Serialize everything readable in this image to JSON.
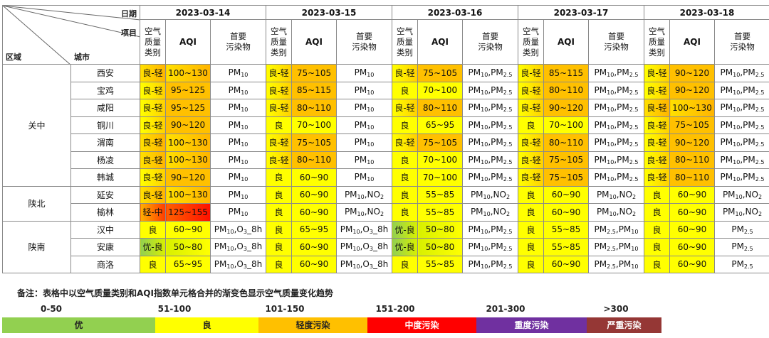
{
  "header": {
    "date_label": "日期",
    "item_label": "项目",
    "region_label": "区域",
    "city_label": "城市",
    "category_label": [
      "空气",
      "质量",
      "类别"
    ],
    "aqi_label": "AQI",
    "pollutant_label": [
      "首要",
      "污染物"
    ]
  },
  "dates": [
    "2023-03-14",
    "2023-03-15",
    "2023-03-16",
    "2023-03-17",
    "2023-03-18"
  ],
  "regions": [
    {
      "name": "关中",
      "cities": [
        "西安",
        "宝鸡",
        "咸阳",
        "铜川",
        "渭南",
        "杨凌",
        "韩城"
      ]
    },
    {
      "name": "陕北",
      "cities": [
        "延安",
        "榆林"
      ]
    },
    {
      "name": "陕南",
      "cities": [
        "汉中",
        "安康",
        "商洛"
      ]
    }
  ],
  "rows": [
    {
      "city": "西安",
      "days": [
        {
          "cat": "良-轻",
          "aqi": "100~130",
          "pol": "PM10",
          "color": "gl2"
        },
        {
          "cat": "良-轻",
          "aqi": "75~105",
          "pol": "PM10",
          "color": "gl"
        },
        {
          "cat": "良-轻",
          "aqi": "75~105",
          "pol": "PM10,PM2.5",
          "color": "gl"
        },
        {
          "cat": "良-轻",
          "aqi": "85~115",
          "pol": "PM10,PM2.5",
          "color": "gl"
        },
        {
          "cat": "良-轻",
          "aqi": "90~120",
          "pol": "PM10,PM2.5",
          "color": "gl"
        }
      ]
    },
    {
      "city": "宝鸡",
      "days": [
        {
          "cat": "良-轻",
          "aqi": "95~125",
          "pol": "PM10",
          "color": "gl"
        },
        {
          "cat": "良-轻",
          "aqi": "85~115",
          "pol": "PM10",
          "color": "gl"
        },
        {
          "cat": "良",
          "aqi": "70~100",
          "pol": "PM10,PM2.5",
          "color": "good"
        },
        {
          "cat": "良-轻",
          "aqi": "80~110",
          "pol": "PM10,PM2.5",
          "color": "gl"
        },
        {
          "cat": "良-轻",
          "aqi": "90~120",
          "pol": "PM10,PM2.5",
          "color": "gl"
        }
      ]
    },
    {
      "city": "咸阳",
      "days": [
        {
          "cat": "良-轻",
          "aqi": "95~125",
          "pol": "PM10",
          "color": "gl"
        },
        {
          "cat": "良-轻",
          "aqi": "80~110",
          "pol": "PM10",
          "color": "gl"
        },
        {
          "cat": "良-轻",
          "aqi": "80~110",
          "pol": "PM10,PM2.5",
          "color": "gl"
        },
        {
          "cat": "良-轻",
          "aqi": "90~120",
          "pol": "PM10,PM2.5",
          "color": "gl"
        },
        {
          "cat": "良-轻",
          "aqi": "100~130",
          "pol": "PM10,PM2.5",
          "color": "gl2"
        }
      ]
    },
    {
      "city": "铜川",
      "days": [
        {
          "cat": "良-轻",
          "aqi": "90~120",
          "pol": "PM10",
          "color": "gl"
        },
        {
          "cat": "良",
          "aqi": "70~100",
          "pol": "PM10",
          "color": "good"
        },
        {
          "cat": "良",
          "aqi": "65~95",
          "pol": "PM10,PM2.5",
          "color": "good"
        },
        {
          "cat": "良",
          "aqi": "70~100",
          "pol": "PM10,PM2.5",
          "color": "good"
        },
        {
          "cat": "良-轻",
          "aqi": "75~105",
          "pol": "PM10,PM2.5",
          "color": "gl"
        }
      ]
    },
    {
      "city": "渭南",
      "days": [
        {
          "cat": "良-轻",
          "aqi": "100~130",
          "pol": "PM10",
          "color": "gl2"
        },
        {
          "cat": "良-轻",
          "aqi": "75~105",
          "pol": "PM10",
          "color": "gl"
        },
        {
          "cat": "良-轻",
          "aqi": "75~105",
          "pol": "PM10,PM2.5",
          "color": "gl"
        },
        {
          "cat": "良-轻",
          "aqi": "80~110",
          "pol": "PM10,PM2.5",
          "color": "gl"
        },
        {
          "cat": "良-轻",
          "aqi": "90~120",
          "pol": "PM10,PM2.5",
          "color": "gl"
        }
      ]
    },
    {
      "city": "杨凌",
      "days": [
        {
          "cat": "良-轻",
          "aqi": "100~130",
          "pol": "PM10",
          "color": "gl2"
        },
        {
          "cat": "良-轻",
          "aqi": "80~110",
          "pol": "PM10",
          "color": "gl"
        },
        {
          "cat": "良",
          "aqi": "70~100",
          "pol": "PM10,PM2.5",
          "color": "good"
        },
        {
          "cat": "良-轻",
          "aqi": "75~105",
          "pol": "PM10,PM2.5",
          "color": "gl"
        },
        {
          "cat": "良-轻",
          "aqi": "80~110",
          "pol": "PM10,PM2.5",
          "color": "gl"
        }
      ]
    },
    {
      "city": "韩城",
      "days": [
        {
          "cat": "良-轻",
          "aqi": "90~120",
          "pol": "PM10",
          "color": "gl"
        },
        {
          "cat": "良",
          "aqi": "60~90",
          "pol": "PM10",
          "color": "good"
        },
        {
          "cat": "良",
          "aqi": "70~100",
          "pol": "PM10,PM2.5",
          "color": "good"
        },
        {
          "cat": "良-轻",
          "aqi": "75~105",
          "pol": "PM10,PM2.5",
          "color": "gl"
        },
        {
          "cat": "良-轻",
          "aqi": "80~110",
          "pol": "PM10,PM2.5",
          "color": "gl"
        }
      ]
    },
    {
      "city": "延安",
      "days": [
        {
          "cat": "良-轻",
          "aqi": "100~130",
          "pol": "PM10",
          "color": "gl2"
        },
        {
          "cat": "良",
          "aqi": "60~90",
          "pol": "PM10,NO2",
          "color": "good"
        },
        {
          "cat": "良",
          "aqi": "55~85",
          "pol": "PM10,NO2",
          "color": "good"
        },
        {
          "cat": "良",
          "aqi": "60~90",
          "pol": "PM10,NO2",
          "color": "good"
        },
        {
          "cat": "良",
          "aqi": "60~90",
          "pol": "PM10,NO2",
          "color": "good"
        }
      ]
    },
    {
      "city": "榆林",
      "days": [
        {
          "cat": "轻-中",
          "aqi": "125~155",
          "pol": "PM10",
          "color": "lm"
        },
        {
          "cat": "良",
          "aqi": "60~90",
          "pol": "PM10,NO2",
          "color": "good"
        },
        {
          "cat": "良",
          "aqi": "55~85",
          "pol": "PM10,NO2",
          "color": "good"
        },
        {
          "cat": "良",
          "aqi": "60~90",
          "pol": "PM10,NO2",
          "color": "good"
        },
        {
          "cat": "良",
          "aqi": "60~90",
          "pol": "PM10,NO2",
          "color": "good"
        }
      ]
    },
    {
      "city": "汉中",
      "days": [
        {
          "cat": "良",
          "aqi": "60~90",
          "pol": "PM10,O3_8h",
          "color": "good"
        },
        {
          "cat": "良",
          "aqi": "65~95",
          "pol": "PM10,O3_8h",
          "color": "good"
        },
        {
          "cat": "优-良",
          "aqi": "50~80",
          "pol": "PM10,PM2.5",
          "color": "eg"
        },
        {
          "cat": "良",
          "aqi": "55~85",
          "pol": "PM2.5,PM10",
          "color": "good"
        },
        {
          "cat": "良",
          "aqi": "60~90",
          "pol": "PM2.5",
          "color": "good"
        }
      ]
    },
    {
      "city": "安康",
      "days": [
        {
          "cat": "优-良",
          "aqi": "50~80",
          "pol": "PM10,O3_8h",
          "color": "eg"
        },
        {
          "cat": "良",
          "aqi": "60~90",
          "pol": "PM10,O3_8h",
          "color": "good"
        },
        {
          "cat": "优-良",
          "aqi": "50~80",
          "pol": "PM10,PM2.5",
          "color": "eg"
        },
        {
          "cat": "良",
          "aqi": "55~85",
          "pol": "PM2.5,PM10",
          "color": "good"
        },
        {
          "cat": "良",
          "aqi": "60~90",
          "pol": "PM2.5",
          "color": "good"
        }
      ]
    },
    {
      "city": "商洛",
      "days": [
        {
          "cat": "良",
          "aqi": "65~95",
          "pol": "PM10,O3_8h",
          "color": "good"
        },
        {
          "cat": "良",
          "aqi": "60~90",
          "pol": "PM10,O3_8h",
          "color": "good"
        },
        {
          "cat": "良",
          "aqi": "55~85",
          "pol": "PM10,PM2.5",
          "color": "good"
        },
        {
          "cat": "良",
          "aqi": "60~90",
          "pol": "PM2.5,PM10",
          "color": "good"
        },
        {
          "cat": "良",
          "aqi": "60~90",
          "pol": "PM2.5",
          "color": "good"
        }
      ]
    }
  ],
  "note": "备注：表格中以空气质量类别和AQI指数单元格合并的渐变色显示空气质量变化趋势",
  "legend": [
    {
      "range": "0-50",
      "label": "优",
      "color": "#92d050",
      "text": "#222222"
    },
    {
      "range": "51-100",
      "label": "良",
      "color": "#ffff00",
      "text": "#222222"
    },
    {
      "range": "101-150",
      "label": "轻度污染",
      "color": "#ffc000",
      "text": "#222222"
    },
    {
      "range": "151-200",
      "label": "中度污染",
      "color": "#ff0000",
      "text": "#ffffff"
    },
    {
      "range": "201-300",
      "label": "重度污染",
      "color": "#7030a0",
      "text": "#ffffff"
    },
    {
      "range": ">300",
      "label": "严重污染",
      "color": "#953735",
      "text": "#ffffff"
    }
  ]
}
